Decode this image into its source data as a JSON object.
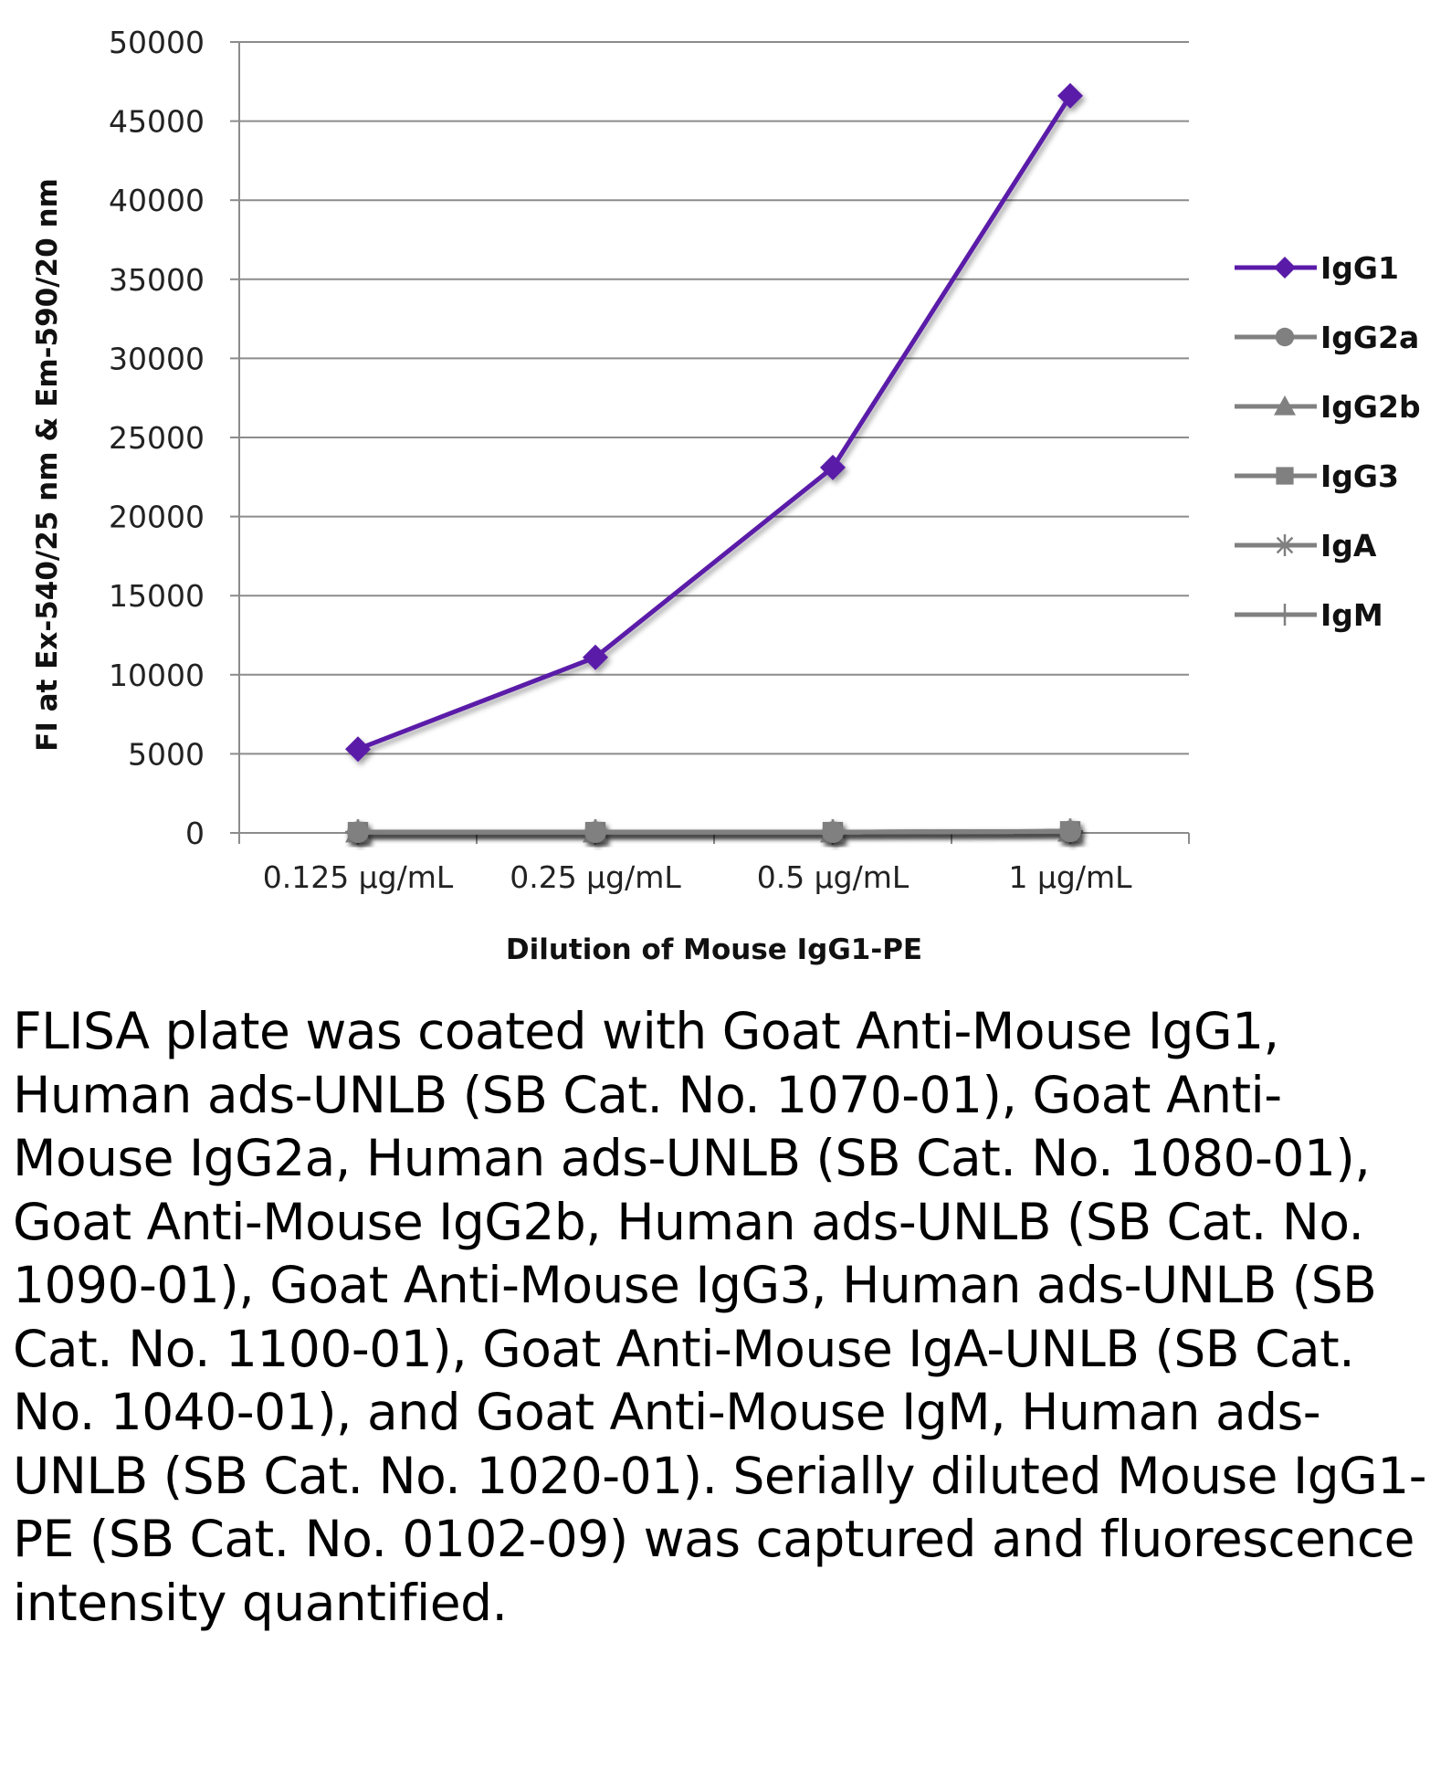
{
  "chart_data": {
    "type": "line",
    "xlabel": "Dilution of Mouse IgG1-PE",
    "ylabel": "FI at Ex-540/25 nm & Em-590/20 nm",
    "categories": [
      "0.125 µg/mL",
      "0.25 µg/mL",
      "0.5 µg/mL",
      "1 µg/mL"
    ],
    "ylim": [
      0,
      50000
    ],
    "yticks": [
      0,
      5000,
      10000,
      15000,
      20000,
      25000,
      30000,
      35000,
      40000,
      45000,
      50000
    ],
    "grid": true,
    "legend_position": "right",
    "series": [
      {
        "name": "IgG1",
        "values": [
          5300,
          11100,
          23100,
          46600
        ],
        "color": "#5a1aa8",
        "marker": "diamond"
      },
      {
        "name": "IgG2a",
        "values": [
          50,
          50,
          50,
          100
        ],
        "color": "#808080",
        "marker": "circle"
      },
      {
        "name": "IgG2b",
        "values": [
          50,
          50,
          50,
          100
        ],
        "color": "#808080",
        "marker": "triangle"
      },
      {
        "name": "IgG3",
        "values": [
          50,
          50,
          50,
          100
        ],
        "color": "#808080",
        "marker": "square"
      },
      {
        "name": "IgA",
        "values": [
          50,
          50,
          50,
          100
        ],
        "color": "#808080",
        "marker": "asterisk"
      },
      {
        "name": "IgM",
        "values": [
          50,
          50,
          50,
          100
        ],
        "color": "#808080",
        "marker": "plus"
      }
    ]
  },
  "caption": "FLISA plate was coated with Goat Anti-Mouse IgG1, Human ads-UNLB (SB Cat. No. 1070-01), Goat Anti-Mouse IgG2a, Human ads-UNLB (SB Cat. No. 1080-01), Goat Anti-Mouse IgG2b, Human ads-UNLB (SB Cat. No. 1090-01), Goat Anti-Mouse IgG3, Human ads-UNLB (SB Cat. No. 1100-01), Goat Anti-Mouse IgA-UNLB (SB Cat. No. 1040-01), and Goat Anti-Mouse IgM, Human ads-UNLB (SB Cat. No. 1020-01).  Serially diluted Mouse IgG1-PE (SB Cat. No. 0102-09) was captured and fluorescence intensity quantified."
}
